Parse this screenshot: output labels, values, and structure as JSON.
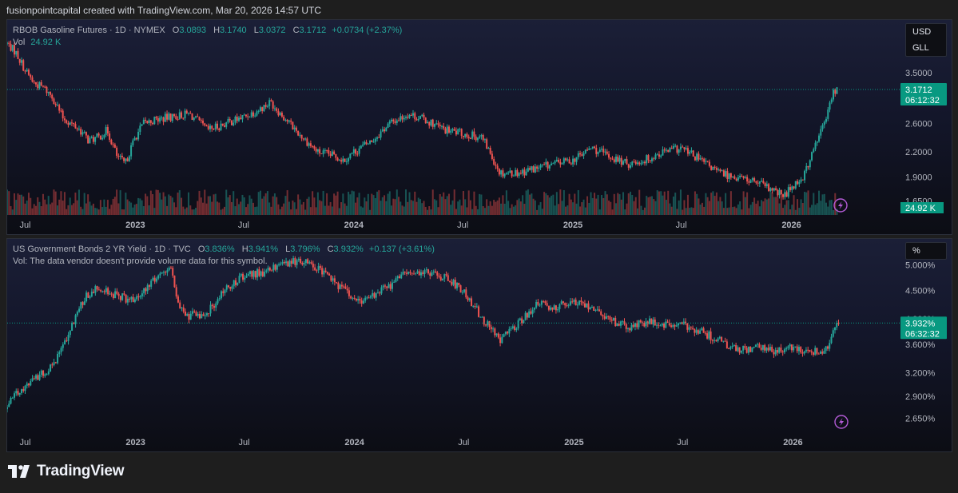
{
  "header": {
    "credit": "fusionpointcapital created with TradingView.com, Mar 20, 2026 14:57 UTC"
  },
  "brand": {
    "name": "TradingView"
  },
  "colors": {
    "up": "#26a69a",
    "down": "#ef5350",
    "accent": "#089981",
    "axis_text": "#b2b5be"
  },
  "panels": [
    {
      "id": "rbob",
      "symbol": "RBOB Gasoline Futures · 1D · NYMEX",
      "ohlc": {
        "o_label": "O",
        "o": "3.0893",
        "h_label": "H",
        "h": "3.1740",
        "l_label": "L",
        "l": "3.0372",
        "c_label": "C",
        "c": "3.1712",
        "change": "+0.0734 (+2.37%)"
      },
      "vol_label": "Vol",
      "vol_value": "24.92 K",
      "currency": "USD",
      "unit": "GLL",
      "price_tag": "3.1712",
      "countdown": "06:12:32",
      "vol_tag": "24.92 K",
      "y_ticks": [
        "3.5000",
        "2.6000",
        "2.2000",
        "1.9000",
        "1.6500"
      ],
      "x_ticks": [
        "Jul",
        "2023",
        "Jul",
        "2024",
        "Jul",
        "2025",
        "Jul",
        "2026"
      ]
    },
    {
      "id": "us2y",
      "symbol": "US Government Bonds 2 YR Yield · 1D · TVC",
      "ohlc": {
        "o_label": "O",
        "o": "3.836%",
        "h_label": "H",
        "h": "3.941%",
        "l_label": "L",
        "l": "3.796%",
        "c_label": "C",
        "c": "3.932%",
        "change": "+0.137 (+3.61%)"
      },
      "vol_note": "Vol: The data vendor doesn't provide volume data for this symbol.",
      "currency": "%",
      "price_tag": "3.932%",
      "countdown": "06:32:32",
      "y_ticks": [
        "5.000%",
        "4.500%",
        "4.000%",
        "3.600%",
        "3.200%",
        "2.900%",
        "2.650%"
      ],
      "x_ticks": [
        "Jul",
        "2023",
        "Jul",
        "2024",
        "Jul",
        "2025",
        "Jul",
        "2026"
      ]
    }
  ],
  "chart_data": [
    {
      "type": "candlestick",
      "title": "RBOB Gasoline Futures · 1D · NYMEX",
      "y_scale": "log",
      "ylim": [
        1.55,
        4.3
      ],
      "x_range": [
        "2022-06-01",
        "2026-03-20"
      ],
      "series": [
        {
          "name": "RBOB Gasoline Futures",
          "x": [
            "2022-06-01",
            "2022-06-15",
            "2022-07-01",
            "2022-07-15",
            "2022-08-01",
            "2022-08-15",
            "2022-09-01",
            "2022-09-15",
            "2022-10-01",
            "2022-10-15",
            "2022-11-01",
            "2022-11-15",
            "2022-12-01",
            "2022-12-15",
            "2023-01-01",
            "2023-01-15",
            "2023-02-01",
            "2023-03-01",
            "2023-04-01",
            "2023-05-01",
            "2023-06-01",
            "2023-07-01",
            "2023-08-01",
            "2023-08-15",
            "2023-09-01",
            "2023-10-01",
            "2023-11-01",
            "2023-12-01",
            "2023-12-15",
            "2024-01-01",
            "2024-02-01",
            "2024-03-01",
            "2024-04-01",
            "2024-05-01",
            "2024-06-01",
            "2024-07-01",
            "2024-08-01",
            "2024-09-01",
            "2024-10-01",
            "2024-11-01",
            "2024-12-01",
            "2025-01-01",
            "2025-02-01",
            "2025-03-01",
            "2025-04-01",
            "2025-05-01",
            "2025-06-01",
            "2025-07-01",
            "2025-08-01",
            "2025-09-01",
            "2025-10-01",
            "2025-11-01",
            "2025-12-01",
            "2025-12-20",
            "2026-01-01",
            "2026-01-20",
            "2026-02-01",
            "2026-02-15",
            "2026-03-01",
            "2026-03-10",
            "2026-03-20"
          ],
          "close": [
            4.15,
            3.95,
            3.55,
            3.3,
            3.2,
            3.05,
            2.7,
            2.6,
            2.5,
            2.35,
            2.4,
            2.5,
            2.15,
            2.05,
            2.4,
            2.6,
            2.65,
            2.7,
            2.75,
            2.5,
            2.6,
            2.7,
            2.85,
            2.95,
            2.75,
            2.45,
            2.2,
            2.15,
            2.1,
            2.2,
            2.35,
            2.6,
            2.75,
            2.65,
            2.5,
            2.45,
            2.4,
            1.95,
            1.95,
            2.0,
            2.05,
            2.1,
            2.25,
            2.15,
            2.05,
            2.1,
            2.2,
            2.25,
            2.1,
            1.95,
            1.9,
            1.85,
            1.75,
            1.7,
            1.8,
            1.9,
            2.1,
            2.4,
            2.7,
            3.1,
            3.1712
          ]
        }
      ],
      "volume_label": "Vol 24.92 K"
    },
    {
      "type": "candlestick",
      "title": "US Government Bonds 2 YR Yield · 1D · TVC",
      "y_scale": "log",
      "ylim": [
        2.55,
        5.25
      ],
      "x_range": [
        "2022-06-01",
        "2026-03-20"
      ],
      "series": [
        {
          "name": "US Government Bonds 2 YR Yield",
          "x": [
            "2022-06-01",
            "2022-06-15",
            "2022-07-01",
            "2022-07-15",
            "2022-08-01",
            "2022-08-15",
            "2022-09-01",
            "2022-09-15",
            "2022-10-01",
            "2022-10-15",
            "2022-11-01",
            "2022-12-01",
            "2023-01-01",
            "2023-02-01",
            "2023-03-01",
            "2023-03-15",
            "2023-04-01",
            "2023-05-01",
            "2023-06-01",
            "2023-07-01",
            "2023-08-01",
            "2023-09-01",
            "2023-10-01",
            "2023-11-01",
            "2023-12-01",
            "2024-01-01",
            "2024-02-01",
            "2024-03-01",
            "2024-04-01",
            "2024-05-01",
            "2024-06-01",
            "2024-07-01",
            "2024-08-01",
            "2024-09-01",
            "2024-10-01",
            "2024-11-01",
            "2024-12-01",
            "2025-01-01",
            "2025-02-01",
            "2025-03-01",
            "2025-04-01",
            "2025-05-01",
            "2025-06-01",
            "2025-07-01",
            "2025-08-01",
            "2025-09-01",
            "2025-10-01",
            "2025-11-01",
            "2025-12-01",
            "2026-01-01",
            "2026-02-01",
            "2026-02-20",
            "2026-03-01",
            "2026-03-10",
            "2026-03-20"
          ],
          "close": [
            2.75,
            2.95,
            3.0,
            3.1,
            3.2,
            3.3,
            3.55,
            3.85,
            4.25,
            4.45,
            4.55,
            4.4,
            4.3,
            4.7,
            4.95,
            4.15,
            4.05,
            4.1,
            4.55,
            4.8,
            4.85,
            5.0,
            5.1,
            4.95,
            4.65,
            4.3,
            4.4,
            4.6,
            4.9,
            4.85,
            4.75,
            4.5,
            4.0,
            3.65,
            3.95,
            4.25,
            4.2,
            4.3,
            4.2,
            4.0,
            3.85,
            3.95,
            3.9,
            3.9,
            3.8,
            3.65,
            3.5,
            3.55,
            3.5,
            3.55,
            3.5,
            3.5,
            3.6,
            3.85,
            3.932
          ]
        }
      ]
    }
  ]
}
